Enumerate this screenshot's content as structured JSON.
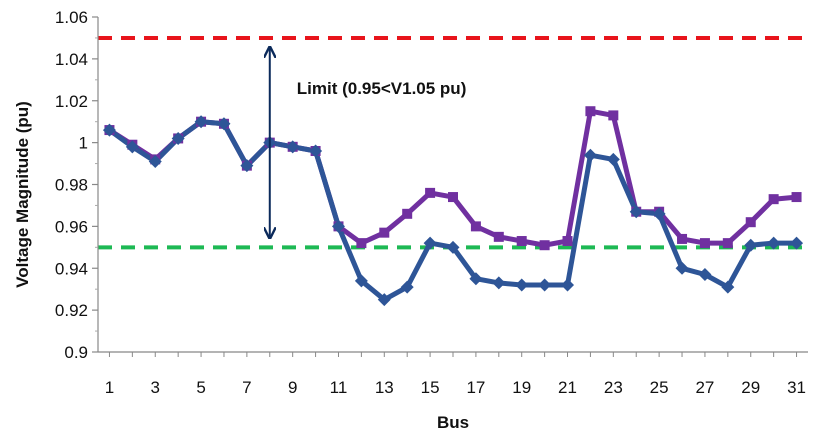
{
  "chart_data": {
    "type": "line",
    "title": "",
    "xlabel": "Bus",
    "ylabel": "Voltage Magnitude (pu)",
    "x": [
      1,
      2,
      3,
      4,
      5,
      6,
      7,
      8,
      9,
      10,
      11,
      12,
      13,
      14,
      15,
      16,
      17,
      18,
      19,
      20,
      21,
      22,
      23,
      24,
      25,
      26,
      27,
      28,
      29,
      30,
      31
    ],
    "x_tick_labels": [
      "1",
      "3",
      "5",
      "7",
      "9",
      "11",
      "13",
      "15",
      "17",
      "19",
      "21",
      "23",
      "25",
      "27",
      "29",
      "31"
    ],
    "y_tick_labels": [
      "0.9",
      "0.92",
      "0.94",
      "0.96",
      "0.98",
      "1",
      "1.02",
      "1.04",
      "1.06"
    ],
    "ylim": [
      0.9,
      1.06
    ],
    "xlim": [
      0.5,
      31.5
    ],
    "grid": false,
    "legend": "none",
    "series": [
      {
        "color": "#7030a0",
        "marker": "square",
        "values": [
          1.006,
          0.999,
          0.992,
          1.002,
          1.01,
          1.009,
          0.989,
          1.0,
          0.998,
          0.996,
          0.96,
          0.952,
          0.957,
          0.966,
          0.976,
          0.974,
          0.96,
          0.955,
          0.953,
          0.951,
          0.953,
          1.015,
          1.013,
          0.967,
          0.967,
          0.954,
          0.952,
          0.952,
          0.962,
          0.973,
          0.974
        ]
      },
      {
        "color": "#2e5597",
        "marker": "diamond",
        "values": [
          1.006,
          0.998,
          0.991,
          1.002,
          1.01,
          1.009,
          0.989,
          1.0,
          0.998,
          0.996,
          0.96,
          0.934,
          0.925,
          0.931,
          0.952,
          0.95,
          0.935,
          0.933,
          0.932,
          0.932,
          0.932,
          0.994,
          0.992,
          0.967,
          0.966,
          0.94,
          0.937,
          0.931,
          0.951,
          0.952,
          0.952
        ]
      }
    ],
    "reference_lines": [
      {
        "y": 1.05,
        "color": "#e8141b",
        "style": "dashed"
      },
      {
        "y": 0.95,
        "color": "#1db954",
        "style": "dashed"
      }
    ],
    "annotations": [
      {
        "text": "Limit (0.95<V1.05 pu)",
        "arrow_x": 8,
        "arrow_y": [
          0.955,
          1.045
        ],
        "arrow_color": "#0b2a5b"
      }
    ]
  }
}
